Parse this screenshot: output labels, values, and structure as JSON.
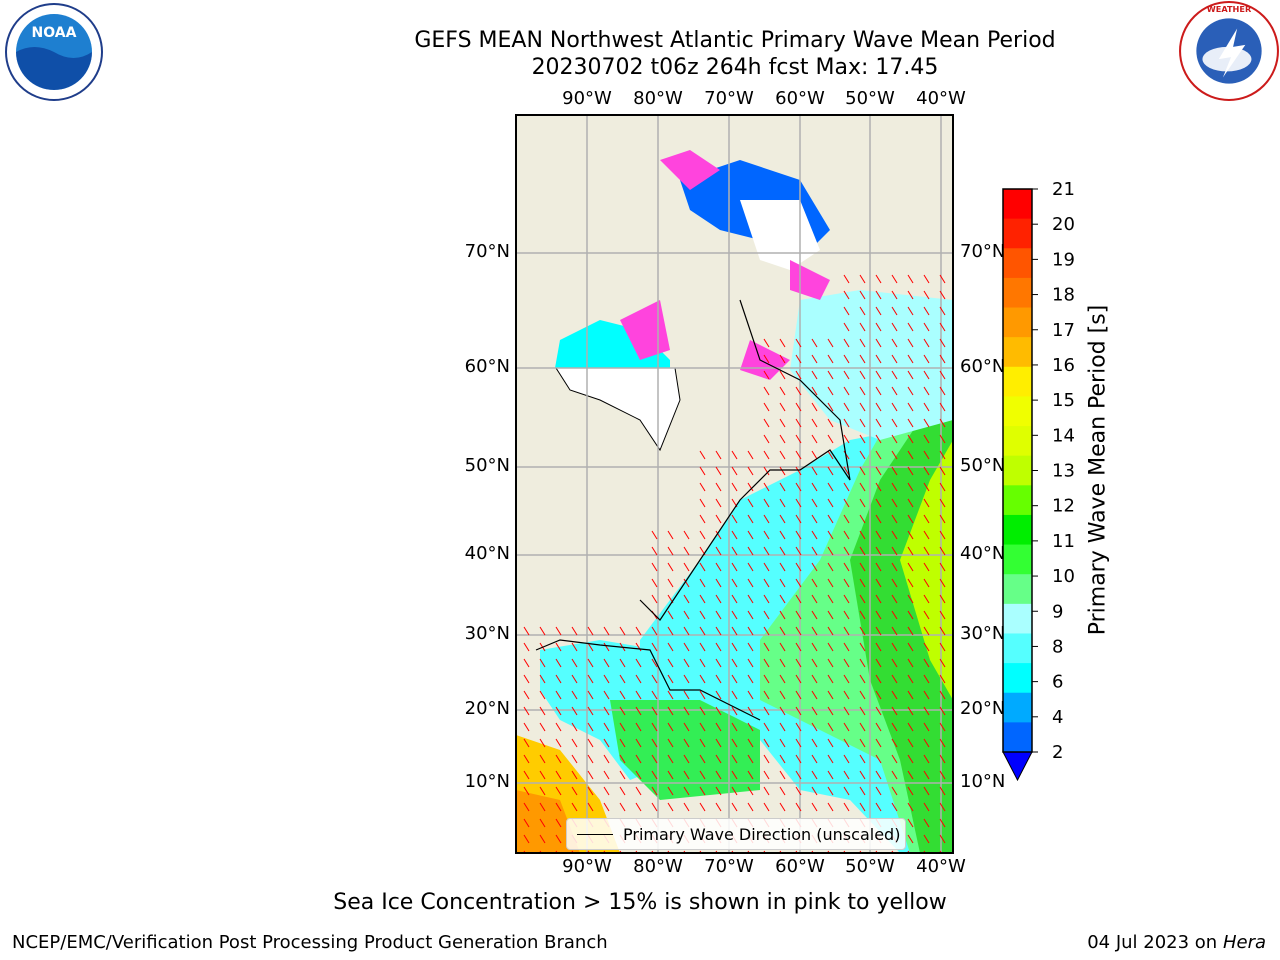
{
  "title": "GEFS MEAN Northwest Atlantic Primary Wave Mean Period",
  "subtitle": "20230702 t06z 264h fcst   Max: 17.45",
  "map": {
    "lon_labels": [
      "90°W",
      "80°W",
      "70°W",
      "60°W",
      "50°W",
      "40°W"
    ],
    "lat_labels": [
      "70°N",
      "60°N",
      "50°N",
      "40°N",
      "30°N",
      "20°N",
      "10°N"
    ],
    "legend_label": "Primary Wave Direction (unscaled)"
  },
  "colorbar": {
    "label": "Primary Wave Mean Period [s]",
    "ticks": [
      "21",
      "20",
      "19",
      "18",
      "17",
      "16",
      "15",
      "14",
      "13",
      "12",
      "11",
      "10",
      "9",
      "8",
      "6",
      "4",
      "2"
    ],
    "colors": [
      "#ff0000",
      "#ff2200",
      "#ff5500",
      "#ff7700",
      "#ff9900",
      "#ffbb00",
      "#ffee00",
      "#f0ff00",
      "#dfff00",
      "#bfff00",
      "#66ff00",
      "#00ee00",
      "#33ff33",
      "#66ff88",
      "#aaffff",
      "#55ffff",
      "#00ffff",
      "#00aaff",
      "#0066ff"
    ],
    "extend_color": "#0000ff"
  },
  "colors": {
    "land": "#efedde",
    "grid": "#b0b0b0",
    "arrow": "#ff0000",
    "ice_white": "#ffffff"
  },
  "caption": "Sea Ice Concentration > 15% is shown in pink to yellow",
  "footer_left": "NCEP/EMC/Verification Post Processing Product Generation Branch",
  "footer_right_date": "04 Jul 2023 on",
  "footer_right_host": "Hera",
  "icons": {
    "left_logo": "noaa-logo",
    "right_logo": "nws-logo"
  }
}
